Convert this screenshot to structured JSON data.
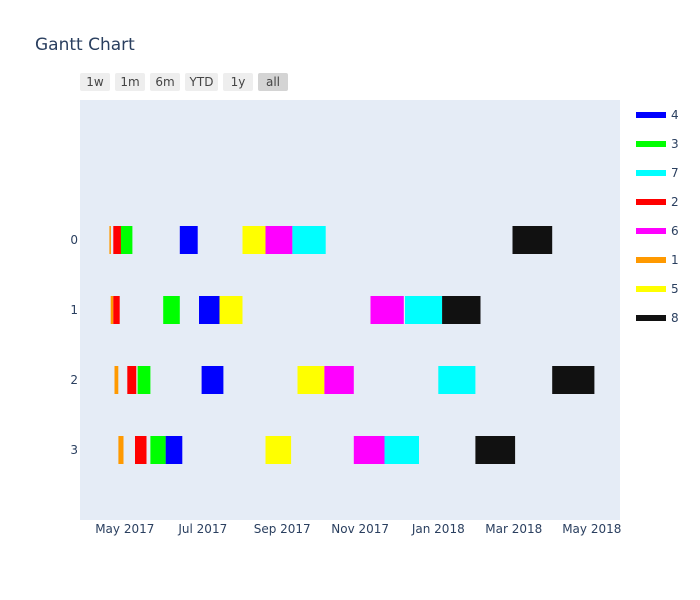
{
  "chart_data": {
    "type": "gantt",
    "title": "Gantt Chart",
    "range_selector": {
      "buttons": [
        "1w",
        "1m",
        "6m",
        "YTD",
        "1y",
        "all"
      ],
      "active": "all"
    },
    "x_ticks": [
      "May 2017",
      "Jul 2017",
      "Sep 2017",
      "Nov 2017",
      "Jan 2018",
      "Mar 2018",
      "May 2018"
    ],
    "x_tick_dates": [
      "2017-05-01",
      "2017-07-01",
      "2017-09-01",
      "2017-11-01",
      "2018-01-01",
      "2018-03-01",
      "2018-05-01"
    ],
    "x_range": [
      "2017-03-27",
      "2018-05-23"
    ],
    "y_categories": [
      "0",
      "1",
      "2",
      "3"
    ],
    "legend": [
      {
        "name": "4",
        "color": "#0000ff"
      },
      {
        "name": "3",
        "color": "#00ff00"
      },
      {
        "name": "7",
        "color": "#00ffff"
      },
      {
        "name": "2",
        "color": "#ff0000"
      },
      {
        "name": "6",
        "color": "#ff00ff"
      },
      {
        "name": "1",
        "color": "#ff9900"
      },
      {
        "name": "5",
        "color": "#ffff00"
      },
      {
        "name": "8",
        "color": "#111111"
      }
    ],
    "tasks": [
      {
        "row": "0",
        "resource": "1",
        "start": "2017-04-19",
        "end": "2017-04-20"
      },
      {
        "row": "0",
        "resource": "2",
        "start": "2017-04-22",
        "end": "2017-04-28"
      },
      {
        "row": "0",
        "resource": "3",
        "start": "2017-04-28",
        "end": "2017-05-07"
      },
      {
        "row": "0",
        "resource": "4",
        "start": "2017-06-13",
        "end": "2017-06-27"
      },
      {
        "row": "0",
        "resource": "5",
        "start": "2017-08-01",
        "end": "2017-08-19"
      },
      {
        "row": "0",
        "resource": "6",
        "start": "2017-08-19",
        "end": "2017-09-09"
      },
      {
        "row": "0",
        "resource": "7",
        "start": "2017-09-09",
        "end": "2017-10-05"
      },
      {
        "row": "0",
        "resource": "8",
        "start": "2018-02-28",
        "end": "2018-03-31"
      },
      {
        "row": "1",
        "resource": "1",
        "start": "2017-04-20",
        "end": "2017-04-22"
      },
      {
        "row": "1",
        "resource": "2",
        "start": "2017-04-22",
        "end": "2017-04-27"
      },
      {
        "row": "1",
        "resource": "3",
        "start": "2017-05-31",
        "end": "2017-06-13"
      },
      {
        "row": "1",
        "resource": "4",
        "start": "2017-06-28",
        "end": "2017-07-14"
      },
      {
        "row": "1",
        "resource": "5",
        "start": "2017-07-14",
        "end": "2017-08-01"
      },
      {
        "row": "1",
        "resource": "6",
        "start": "2017-11-09",
        "end": "2017-12-05"
      },
      {
        "row": "1",
        "resource": "7",
        "start": "2017-12-06",
        "end": "2018-01-04"
      },
      {
        "row": "1",
        "resource": "8",
        "start": "2018-01-04",
        "end": "2018-02-03"
      },
      {
        "row": "2",
        "resource": "1",
        "start": "2017-04-23",
        "end": "2017-04-26"
      },
      {
        "row": "2",
        "resource": "2",
        "start": "2017-05-03",
        "end": "2017-05-10"
      },
      {
        "row": "2",
        "resource": "3",
        "start": "2017-05-11",
        "end": "2017-05-21"
      },
      {
        "row": "2",
        "resource": "4",
        "start": "2017-06-30",
        "end": "2017-07-17"
      },
      {
        "row": "2",
        "resource": "5",
        "start": "2017-09-13",
        "end": "2017-10-04"
      },
      {
        "row": "2",
        "resource": "6",
        "start": "2017-10-04",
        "end": "2017-10-27"
      },
      {
        "row": "2",
        "resource": "7",
        "start": "2018-01-01",
        "end": "2018-01-30"
      },
      {
        "row": "2",
        "resource": "8",
        "start": "2018-03-31",
        "end": "2018-05-03"
      },
      {
        "row": "3",
        "resource": "1",
        "start": "2017-04-26",
        "end": "2017-04-30"
      },
      {
        "row": "3",
        "resource": "2",
        "start": "2017-05-09",
        "end": "2017-05-18"
      },
      {
        "row": "3",
        "resource": "3",
        "start": "2017-05-21",
        "end": "2017-06-02"
      },
      {
        "row": "3",
        "resource": "4",
        "start": "2017-06-02",
        "end": "2017-06-15"
      },
      {
        "row": "3",
        "resource": "5",
        "start": "2017-08-19",
        "end": "2017-09-08"
      },
      {
        "row": "3",
        "resource": "6",
        "start": "2017-10-27",
        "end": "2017-11-20"
      },
      {
        "row": "3",
        "resource": "7",
        "start": "2017-11-20",
        "end": "2017-12-17"
      },
      {
        "row": "3",
        "resource": "8",
        "start": "2018-01-30",
        "end": "2018-03-02"
      }
    ]
  }
}
